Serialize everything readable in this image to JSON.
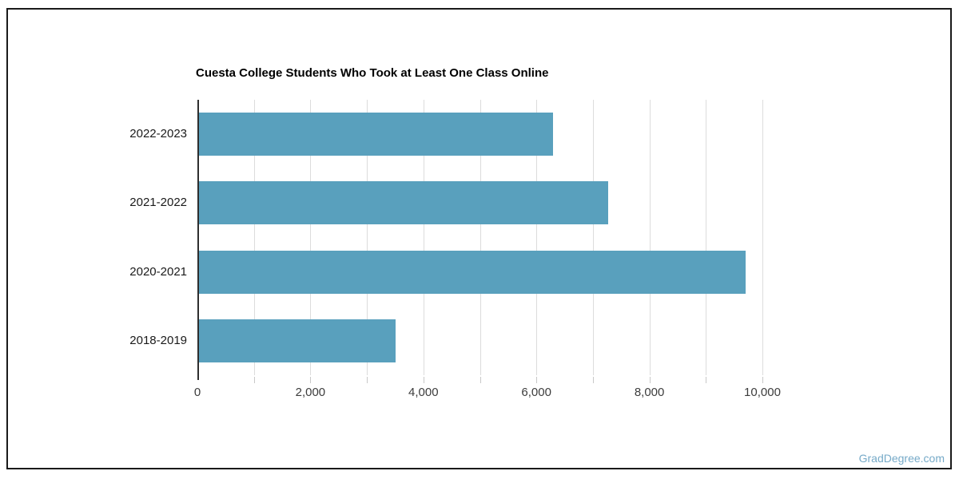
{
  "page": {
    "background": "#ffffff",
    "border_color": "#1a1a1a"
  },
  "chart_data": {
    "type": "bar",
    "orientation": "horizontal",
    "title": "Cuesta College Students Who Took at Least One Class Online",
    "categories": [
      "2022-2023",
      "2021-2022",
      "2020-2021",
      "2018-2019"
    ],
    "values": [
      6280,
      7250,
      9690,
      3500
    ],
    "xlabel": "",
    "ylabel": "",
    "xlim": [
      0,
      10000
    ],
    "gridline_step": 1000,
    "grid": true,
    "legend": false,
    "x_ticks": [
      {
        "value": 0,
        "label": "0"
      },
      {
        "value": 2000,
        "label": "2,000"
      },
      {
        "value": 4000,
        "label": "4,000"
      },
      {
        "value": 6000,
        "label": "6,000"
      },
      {
        "value": 8000,
        "label": "8,000"
      },
      {
        "value": 10000,
        "label": "10,000"
      }
    ],
    "colors": {
      "bar": "#59a0bd",
      "gridline": "#dcdcdc",
      "axis": "#2e2e2e",
      "tick_label": "#3c3c3c",
      "category_label": "#1a1a1a",
      "title": "#000000"
    }
  },
  "footer": {
    "watermark": "GradDegree.com",
    "watermark_color": "#76aac8"
  }
}
